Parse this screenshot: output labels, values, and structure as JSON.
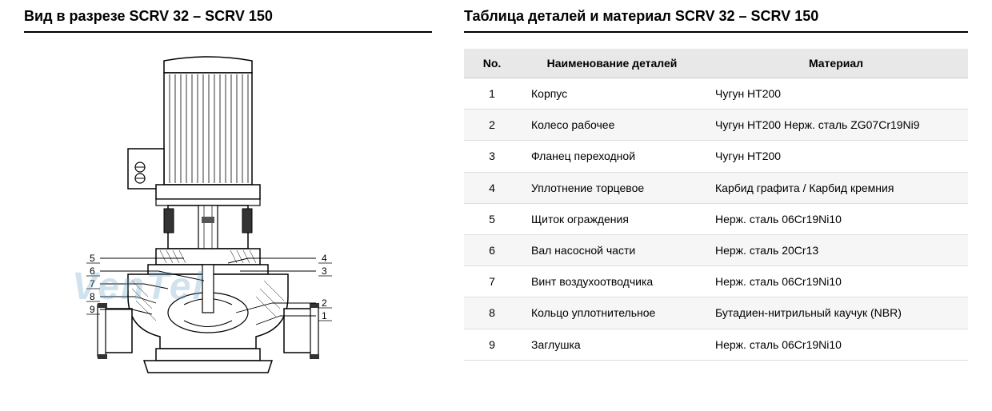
{
  "left": {
    "title": "Вид в разрезе SCRV 32 – SCRV 150",
    "watermark": "VenTel",
    "callouts": [
      "5",
      "6",
      "7",
      "8",
      "9",
      "4",
      "3",
      "2",
      "1"
    ]
  },
  "right": {
    "title": "Таблица деталей и материал SCRV 32 – SCRV 150",
    "columns": [
      "No.",
      "Наименование деталей",
      "Материал"
    ],
    "rows": [
      {
        "no": "1",
        "name": "Корпус",
        "material": "Чугун HT200"
      },
      {
        "no": "2",
        "name": "Колесо рабочее",
        "material": "Чугун HT200    Нерж. сталь ZG07Cr19Ni9"
      },
      {
        "no": "3",
        "name": "Фланец переходной",
        "material": "Чугун HT200"
      },
      {
        "no": "4",
        "name": "Уплотнение торцевое",
        "material": "Карбид графита / Карбид кремния"
      },
      {
        "no": "5",
        "name": "Щиток ограждения",
        "material": "Нерж. сталь 06Cr19Ni10"
      },
      {
        "no": "6",
        "name": "Вал насосной части",
        "material": "Нерж. сталь 20Cr13"
      },
      {
        "no": "7",
        "name": "Винт воздухоотводчика",
        "material": "Нерж. сталь 06Cr19Ni10"
      },
      {
        "no": "8",
        "name": "Кольцо уплотнительное",
        "material": "Бутадиен-нитрильный каучук (NBR)"
      },
      {
        "no": "9",
        "name": "Заглушка",
        "material": "Нерж. сталь 06Cr19Ni10"
      }
    ]
  },
  "styling": {
    "title_fontsize": 18,
    "title_underline_color": "#000000",
    "body_fontsize": 14,
    "header_bg": "#e8e8e8",
    "row_alt_bg": "#f6f6f6",
    "border_color": "#dddddd",
    "text_color": "#000000",
    "watermark_color": "rgba(100,160,200,0.3)",
    "diagram_stroke": "#000000",
    "diagram_fill_light": "#ffffff",
    "diagram_hatch": "#333333"
  }
}
